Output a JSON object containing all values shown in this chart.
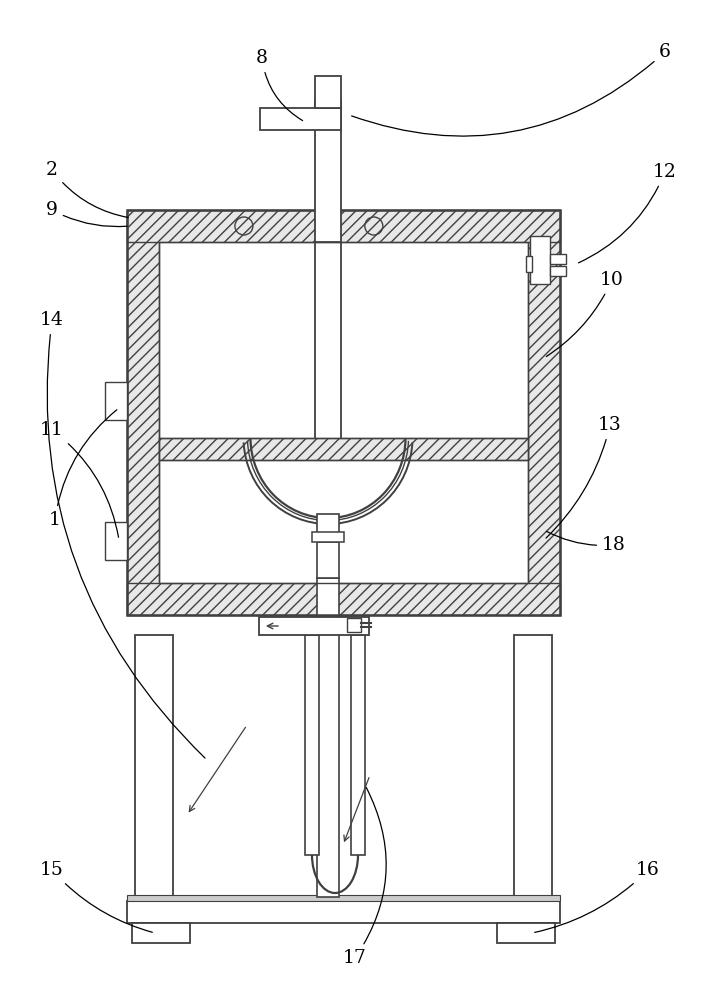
{
  "bg": "#ffffff",
  "lc": "#404040",
  "fig_w": 7.19,
  "fig_h": 10.0,
  "dpi": 100
}
